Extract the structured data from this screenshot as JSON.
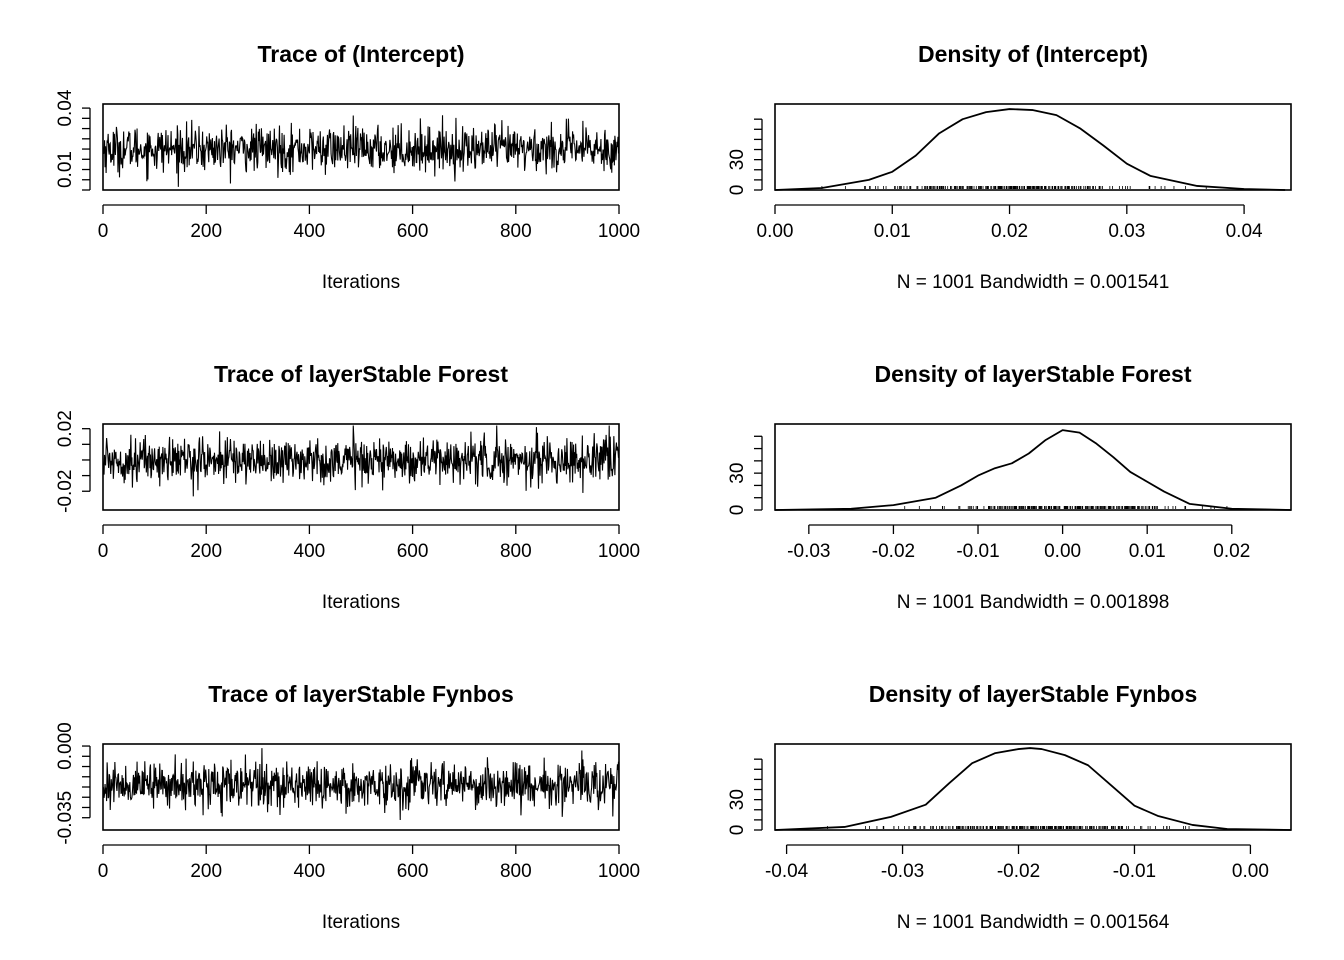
{
  "chart_data": [
    {
      "type": "line",
      "title": "Trace of (Intercept)",
      "xlabel": "Iterations",
      "ylabel": "",
      "xlim": [
        0,
        1000
      ],
      "ylim": [
        0.0,
        0.042
      ],
      "xticks": [
        0,
        200,
        400,
        600,
        800,
        1000
      ],
      "xtick_labels": [
        "0",
        "200",
        "400",
        "600",
        "800",
        "1000"
      ],
      "yticks": [
        0.0,
        0.005,
        0.01,
        0.015,
        0.02,
        0.025,
        0.03,
        0.035,
        0.04
      ],
      "ytick_labels": {
        "0.01": "0.01",
        "0.04": "0.04"
      },
      "series": [
        {
          "n": 1001,
          "mean": 0.02,
          "sd": 0.0055,
          "min": 0.0015,
          "max": 0.039,
          "color": "#000000"
        }
      ]
    },
    {
      "type": "area",
      "title": "Density of (Intercept)",
      "xlabel": "N = 1001   Bandwidth = 0.001541",
      "xlim": [
        0.0,
        0.044
      ],
      "ylim": [
        0,
        85
      ],
      "xticks": [
        0.0,
        0.01,
        0.02,
        0.03,
        0.04
      ],
      "xtick_labels": [
        "0.00",
        "0.01",
        "0.02",
        "0.03",
        "0.04"
      ],
      "yticks": [
        0,
        10,
        20,
        30,
        40,
        50,
        60,
        70
      ],
      "ytick_labels": {
        "0": "0",
        "30": "30"
      },
      "curve": {
        "x": [
          0.0,
          0.004,
          0.008,
          0.01,
          0.012,
          0.014,
          0.016,
          0.018,
          0.02,
          0.022,
          0.024,
          0.026,
          0.028,
          0.03,
          0.032,
          0.036,
          0.04,
          0.0435
        ],
        "y": [
          0,
          2,
          10,
          18,
          34,
          56,
          70,
          77,
          80,
          79,
          74,
          61,
          44,
          26,
          14,
          4,
          1,
          0
        ]
      },
      "rug": {
        "range": [
          0.004,
          0.037
        ],
        "center": 0.02,
        "sd": 0.0055
      }
    },
    {
      "type": "line",
      "title": "Trace of layerStable Forest",
      "xlabel": "Iterations",
      "ylabel": "",
      "xlim": [
        0,
        1000
      ],
      "ylim": [
        -0.032,
        0.023
      ],
      "xticks": [
        0,
        200,
        400,
        600,
        800,
        1000
      ],
      "xtick_labels": [
        "0",
        "200",
        "400",
        "600",
        "800",
        "1000"
      ],
      "yticks": [
        -0.02,
        -0.01,
        0.0,
        0.01,
        0.02
      ],
      "ytick_labels": {
        "-0.02": "-0.02",
        "0.02": "0.02"
      },
      "series": [
        {
          "n": 1001,
          "mean": 0.0,
          "sd": 0.0072,
          "min": -0.03,
          "max": 0.022,
          "color": "#000000"
        }
      ]
    },
    {
      "type": "area",
      "title": "Density of layerStable Forest",
      "xlabel": "N = 1001   Bandwidth = 0.001898",
      "xlim": [
        -0.034,
        0.027
      ],
      "ylim": [
        0,
        70
      ],
      "xticks": [
        -0.03,
        -0.02,
        -0.01,
        0.0,
        0.01,
        0.02
      ],
      "xtick_labels": [
        "-0.03",
        "-0.02",
        "-0.01",
        "0.00",
        "0.01",
        "0.02"
      ],
      "yticks": [
        0,
        10,
        20,
        30,
        40,
        50,
        60
      ],
      "ytick_labels": {
        "0": "0",
        "30": "30"
      },
      "curve": {
        "x": [
          -0.034,
          -0.025,
          -0.02,
          -0.015,
          -0.012,
          -0.01,
          -0.008,
          -0.006,
          -0.004,
          -0.002,
          0.0,
          0.002,
          0.004,
          0.006,
          0.008,
          0.01,
          0.012,
          0.015,
          0.02,
          0.027
        ],
        "y": [
          0,
          1,
          4,
          10,
          20,
          28,
          34,
          38,
          46,
          57,
          65,
          63,
          54,
          43,
          31,
          23,
          15,
          5,
          1,
          0
        ]
      },
      "rug": {
        "range": [
          -0.022,
          0.02
        ],
        "center": 0.0,
        "sd": 0.007
      }
    },
    {
      "type": "line",
      "title": "Trace of layerStable Fynbos",
      "xlabel": "Iterations",
      "ylabel": "",
      "xlim": [
        0,
        1000
      ],
      "ylim": [
        -0.041,
        0.001
      ],
      "xticks": [
        0,
        200,
        400,
        600,
        800,
        1000
      ],
      "xtick_labels": [
        "0",
        "200",
        "400",
        "600",
        "800",
        "1000"
      ],
      "yticks": [
        -0.035,
        -0.03,
        -0.025,
        -0.02,
        -0.015,
        -0.01,
        -0.005,
        0.0
      ],
      "ytick_labels": {
        "-0.035": "-0.035",
        "0": "0.000"
      },
      "series": [
        {
          "n": 1001,
          "mean": -0.019,
          "sd": 0.0055,
          "min": -0.037,
          "max": -0.001,
          "color": "#000000"
        }
      ]
    },
    {
      "type": "area",
      "title": "Density of layerStable Fynbos",
      "xlabel": "N = 1001   Bandwidth = 0.001564",
      "xlim": [
        -0.041,
        0.0035
      ],
      "ylim": [
        0,
        85
      ],
      "xticks": [
        -0.04,
        -0.03,
        -0.02,
        -0.01,
        0.0
      ],
      "xtick_labels": [
        "-0.04",
        "-0.03",
        "-0.02",
        "-0.01",
        "0.00"
      ],
      "yticks": [
        0,
        10,
        20,
        30,
        40,
        50,
        60,
        70
      ],
      "ytick_labels": {
        "0": "0",
        "30": "30"
      },
      "curve": {
        "x": [
          -0.041,
          -0.035,
          -0.031,
          -0.028,
          -0.026,
          -0.024,
          -0.022,
          -0.02,
          -0.019,
          -0.018,
          -0.016,
          -0.014,
          -0.012,
          -0.01,
          -0.008,
          -0.005,
          -0.002,
          0.0035
        ],
        "y": [
          0,
          3,
          13,
          25,
          46,
          66,
          76,
          80,
          81,
          80,
          74,
          64,
          44,
          24,
          14,
          5,
          1,
          0
        ]
      },
      "rug": {
        "range": [
          -0.037,
          -0.002
        ],
        "center": -0.019,
        "sd": 0.0055
      }
    }
  ]
}
